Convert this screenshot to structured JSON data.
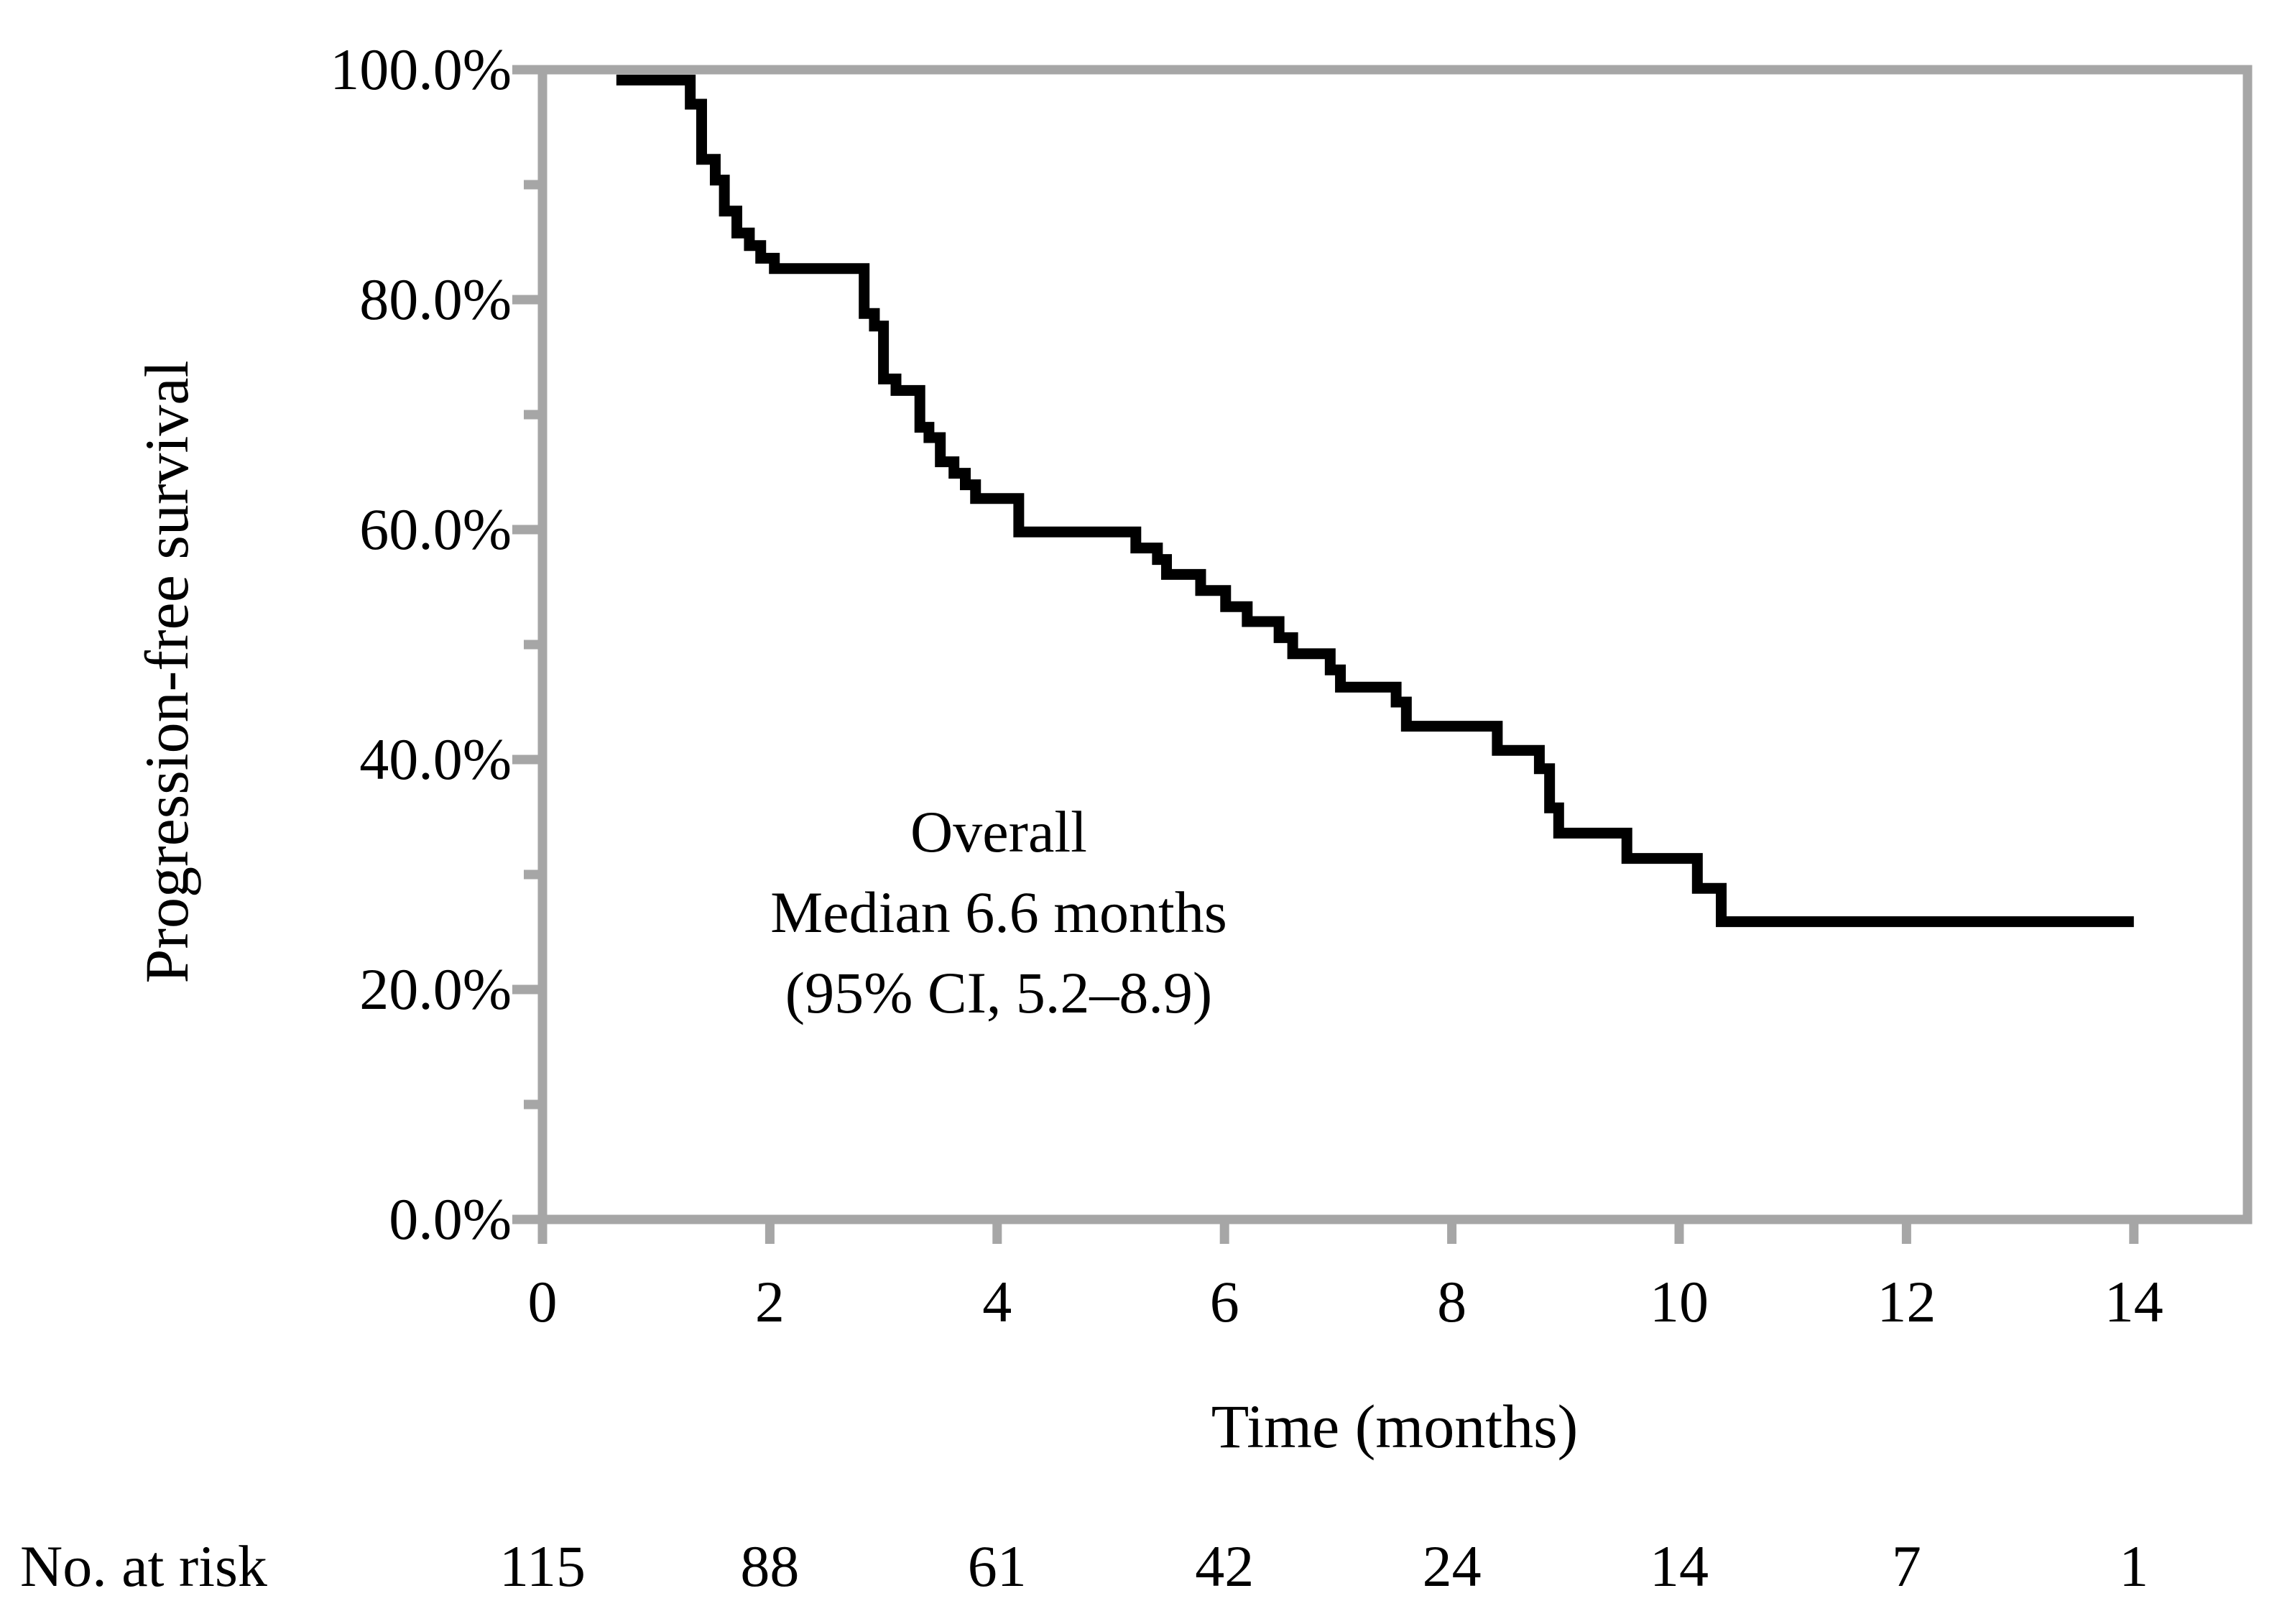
{
  "figure": {
    "y_axis_title": "Progression-free survival",
    "x_axis_title": "Time (months)",
    "annotation": {
      "lines": [
        "Overall",
        "Median 6.6 months",
        "(95% CI, 5.2–8.9)"
      ]
    },
    "risk_table": {
      "label": "No. at risk",
      "times": [
        0,
        2,
        4,
        6,
        8,
        10,
        12,
        14
      ],
      "values": [
        "115",
        "88",
        "61",
        "42",
        "24",
        "14",
        "7",
        "1"
      ]
    }
  },
  "chart_data": {
    "type": "line",
    "subtype": "kaplan-meier-step",
    "title": "",
    "xlabel": "Time (months)",
    "ylabel": "Progression-free survival",
    "xlim": [
      0,
      15
    ],
    "ylim": [
      0,
      100
    ],
    "grid": false,
    "legend_position": "none",
    "xticks": {
      "values": [
        0,
        2,
        4,
        6,
        8,
        10,
        12,
        14
      ],
      "labels": [
        "0",
        "2",
        "4",
        "6",
        "8",
        "10",
        "12",
        "14"
      ]
    },
    "yticks": {
      "values": [
        0,
        20,
        40,
        60,
        80,
        100
      ],
      "labels": [
        "0.0%",
        "20.0%",
        "40.0%",
        "60.0%",
        "80.0%",
        "100.0%"
      ],
      "minor_values": [
        10,
        30,
        50,
        70,
        90
      ]
    },
    "series": [
      {
        "name": "Overall",
        "median_months": 6.6,
        "ci95": "5.2–8.9",
        "start": {
          "t": 0.65,
          "s": 99.1
        },
        "steps": [
          [
            1.3,
            97.0
          ],
          [
            1.4,
            92.2
          ],
          [
            1.52,
            90.4
          ],
          [
            1.6,
            87.7
          ],
          [
            1.71,
            85.8
          ],
          [
            1.82,
            84.7
          ],
          [
            1.92,
            83.6
          ],
          [
            2.04,
            82.7
          ],
          [
            2.83,
            78.8
          ],
          [
            2.92,
            77.7
          ],
          [
            3.0,
            73.1
          ],
          [
            3.11,
            72.1
          ],
          [
            3.32,
            68.9
          ],
          [
            3.4,
            68.0
          ],
          [
            3.5,
            65.9
          ],
          [
            3.62,
            64.9
          ],
          [
            3.72,
            63.9
          ],
          [
            3.81,
            62.7
          ],
          [
            4.19,
            59.8
          ],
          [
            5.22,
            58.4
          ],
          [
            5.41,
            57.4
          ],
          [
            5.49,
            56.1
          ],
          [
            5.79,
            54.7
          ],
          [
            6.01,
            53.3
          ],
          [
            6.2,
            52.0
          ],
          [
            6.48,
            50.6
          ],
          [
            6.6,
            49.2
          ],
          [
            6.93,
            47.8
          ],
          [
            7.02,
            46.3
          ],
          [
            7.51,
            45.0
          ],
          [
            7.6,
            42.9
          ],
          [
            8.4,
            40.8
          ],
          [
            8.77,
            39.2
          ],
          [
            8.86,
            35.8
          ],
          [
            8.94,
            33.6
          ],
          [
            9.54,
            31.4
          ],
          [
            10.16,
            28.8
          ],
          [
            10.37,
            25.9
          ]
        ],
        "end_t": 14.0
      }
    ],
    "no_at_risk": [
      115,
      88,
      61,
      42,
      24,
      14,
      7,
      1
    ]
  },
  "colors": {
    "axis": "#a6a6a6",
    "curve": "#000000",
    "text": "#000000",
    "background": "#ffffff"
  }
}
